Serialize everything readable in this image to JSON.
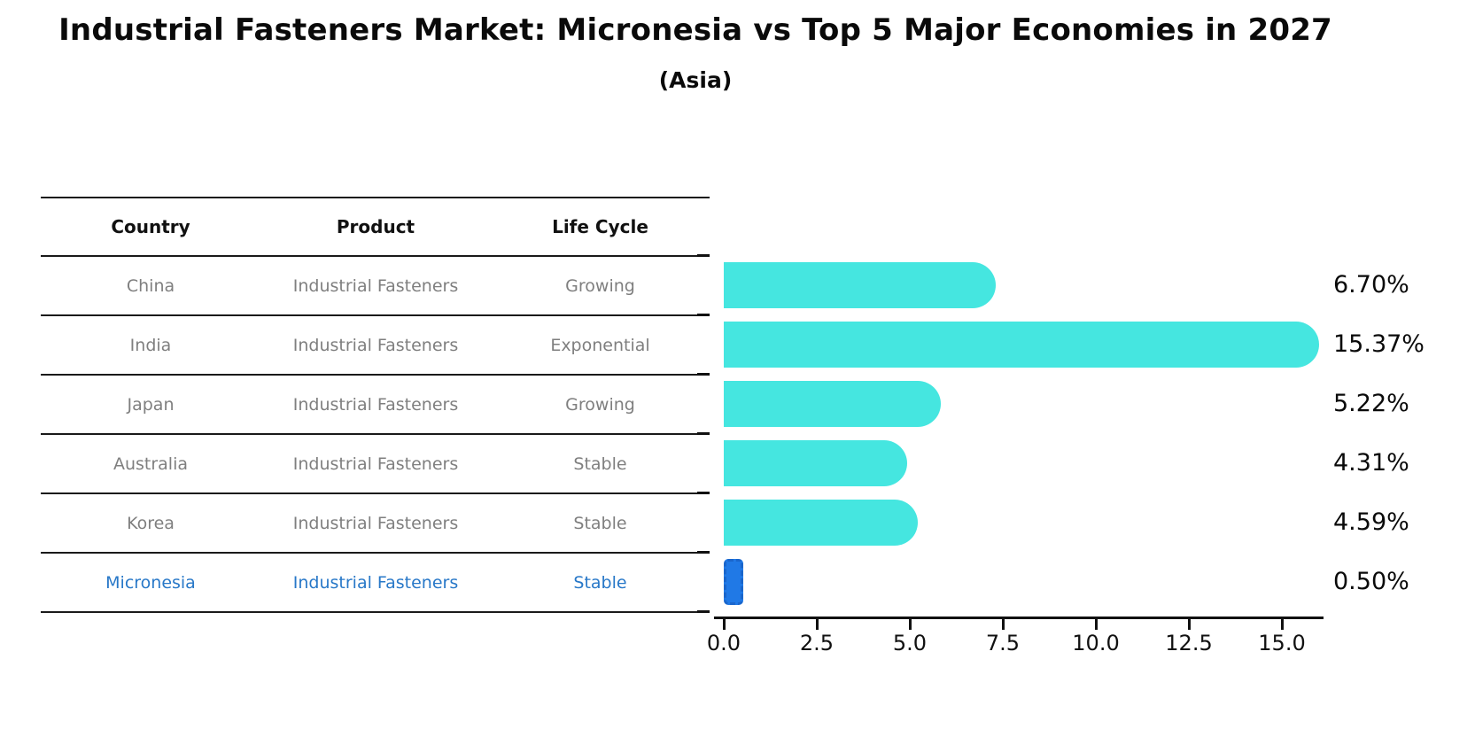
{
  "title": "Industrial Fasteners Market: Micronesia vs Top 5 Major Economies in 2027",
  "subtitle": "(Asia)",
  "table": {
    "headers": [
      "Country",
      "Product",
      "Life Cycle"
    ],
    "rows": [
      {
        "country": "China",
        "product": "Industrial Fasteners",
        "life_cycle": "Growing",
        "highlight": false
      },
      {
        "country": "India",
        "product": "Industrial Fasteners",
        "life_cycle": "Exponential",
        "highlight": false
      },
      {
        "country": "Japan",
        "product": "Industrial Fasteners",
        "life_cycle": "Growing",
        "highlight": false
      },
      {
        "country": "Australia",
        "product": "Industrial Fasteners",
        "life_cycle": "Stable",
        "highlight": false
      },
      {
        "country": "Korea",
        "product": "Industrial Fasteners",
        "life_cycle": "Stable",
        "highlight": false
      },
      {
        "country": "Micronesia",
        "product": "Industrial Fasteners",
        "life_cycle": "Stable",
        "highlight": true
      }
    ]
  },
  "chart_data": {
    "type": "bar",
    "orientation": "horizontal",
    "title": "Industrial Fasteners Market: Micronesia vs Top 5 Major Economies in 2027 (Asia)",
    "categories": [
      "China",
      "India",
      "Japan",
      "Australia",
      "Korea",
      "Micronesia"
    ],
    "values": [
      6.7,
      15.37,
      5.22,
      4.31,
      4.59,
      0.5
    ],
    "value_labels": [
      "6.70%",
      "15.37%",
      "5.22%",
      "4.31%",
      "4.59%",
      "0.50%"
    ],
    "x_tick_labels": [
      "0.0",
      "2.5",
      "5.0",
      "7.5",
      "10.0",
      "12.5",
      "15.0"
    ],
    "x_tick_values": [
      0.0,
      2.5,
      5.0,
      7.5,
      10.0,
      12.5,
      15.0
    ],
    "xlim": [
      0,
      16.3
    ],
    "grid": false,
    "legend": "none",
    "bar_color": "#45E6E0",
    "highlight_bar_color": "#2079E6",
    "highlight_index": 5
  },
  "colors": {
    "header_text": "#111111",
    "row_text": "#7f7f7f",
    "highlight_text": "#2878C8",
    "axis": "#111111",
    "background": "#ffffff"
  }
}
